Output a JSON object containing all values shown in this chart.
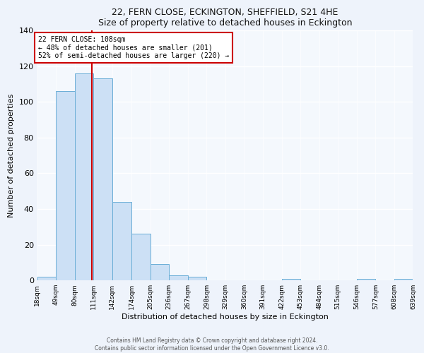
{
  "title": "22, FERN CLOSE, ECKINGTON, SHEFFIELD, S21 4HE",
  "subtitle": "Size of property relative to detached houses in Eckington",
  "xlabel": "Distribution of detached houses by size in Eckington",
  "ylabel": "Number of detached properties",
  "bar_values": [
    2,
    106,
    116,
    113,
    44,
    26,
    9,
    3,
    2,
    0,
    0,
    0,
    0,
    1,
    0,
    0,
    0,
    1,
    0,
    1
  ],
  "bin_edges": [
    18,
    49,
    80,
    111,
    142,
    174,
    205,
    236,
    267,
    298,
    329,
    360,
    391,
    422,
    453,
    484,
    515,
    546,
    577,
    608,
    639
  ],
  "tick_labels": [
    "18sqm",
    "49sqm",
    "80sqm",
    "111sqm",
    "142sqm",
    "174sqm",
    "205sqm",
    "236sqm",
    "267sqm",
    "298sqm",
    "329sqm",
    "360sqm",
    "391sqm",
    "422sqm",
    "453sqm",
    "484sqm",
    "515sqm",
    "546sqm",
    "577sqm",
    "608sqm",
    "639sqm"
  ],
  "bar_color": "#cce0f5",
  "bar_edge_color": "#6aaed6",
  "vline_x": 108,
  "vline_color": "#cc0000",
  "annotation_line1": "22 FERN CLOSE: 108sqm",
  "annotation_line2": "← 48% of detached houses are smaller (201)",
  "annotation_line3": "52% of semi-detached houses are larger (220) →",
  "annotation_box_color": "#cc0000",
  "ylim": [
    0,
    140
  ],
  "yticks": [
    0,
    20,
    40,
    60,
    80,
    100,
    120,
    140
  ],
  "footer_line1": "Contains HM Land Registry data © Crown copyright and database right 2024.",
  "footer_line2": "Contains public sector information licensed under the Open Government Licence v3.0.",
  "bg_color": "#eef3fb",
  "plot_bg_color": "#f4f8fd"
}
